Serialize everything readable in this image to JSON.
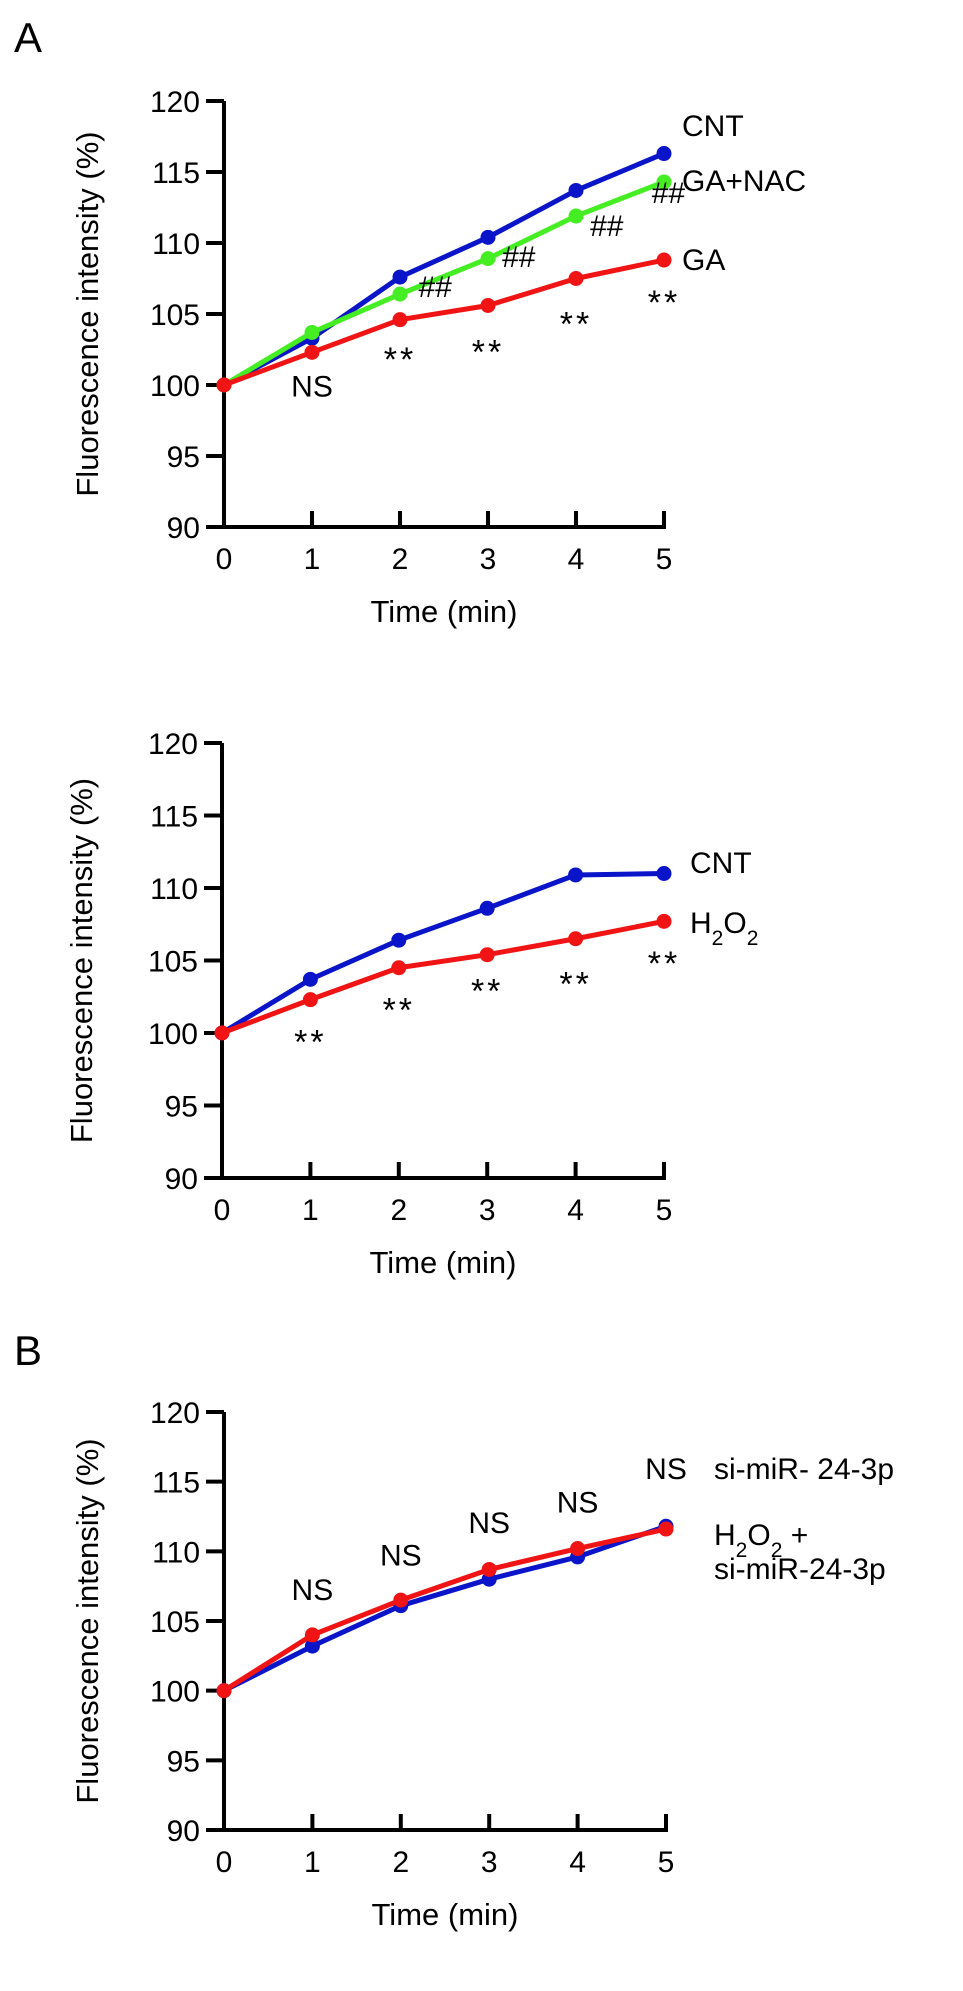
{
  "panel_labels": [
    "A",
    "B"
  ],
  "chart_data": [
    {
      "type": "line",
      "xlabel": "Time (min)",
      "ylabel": "Fluorescence intensity (%)",
      "x": [
        0,
        1,
        2,
        3,
        4,
        5
      ],
      "xlim": [
        0,
        5
      ],
      "ylim": [
        90,
        120
      ],
      "yticks": [
        90,
        95,
        100,
        105,
        110,
        115,
        120
      ],
      "grid": false,
      "series": [
        {
          "name": "CNT",
          "color": "#0a14c8",
          "values": [
            100,
            103.3,
            107.6,
            110.4,
            113.7,
            116.3
          ]
        },
        {
          "name": "GA+NAC",
          "color": "#44ee22",
          "values": [
            100,
            103.7,
            106.4,
            108.9,
            111.9,
            114.3
          ]
        },
        {
          "name": "GA",
          "color": "#f01414",
          "values": [
            100,
            102.3,
            104.6,
            105.6,
            107.5,
            108.8
          ]
        }
      ],
      "annotations": [
        {
          "text": "NS",
          "x": 1,
          "y": 99.2
        },
        {
          "text": "**",
          "x": 2,
          "y": 101.0
        },
        {
          "text": "**",
          "x": 3,
          "y": 101.5
        },
        {
          "text": "**",
          "x": 4,
          "y": 103.5
        },
        {
          "text": "**",
          "x": 5,
          "y": 105.0
        },
        {
          "text": "##",
          "x": 2.4,
          "y": 106.2
        },
        {
          "text": "##",
          "x": 3.35,
          "y": 108.3
        },
        {
          "text": "##",
          "x": 4.35,
          "y": 110.5
        },
        {
          "text": "##",
          "x": 5.05,
          "y": 112.8
        }
      ]
    },
    {
      "type": "line",
      "xlabel": "Time (min)",
      "ylabel": "Fluorescence intensity (%)",
      "x": [
        0,
        1,
        2,
        3,
        4,
        5
      ],
      "xlim": [
        0,
        5
      ],
      "ylim": [
        90,
        120
      ],
      "yticks": [
        90,
        95,
        100,
        105,
        110,
        115,
        120
      ],
      "grid": false,
      "series": [
        {
          "name": "CNT",
          "color": "#0a14c8",
          "values": [
            100,
            103.7,
            106.4,
            108.6,
            110.9,
            111.0
          ]
        },
        {
          "name": "H₂O₂",
          "color": "#f01414",
          "values": [
            100,
            102.3,
            104.5,
            105.4,
            106.5,
            107.7
          ]
        }
      ],
      "annotations": [
        {
          "text": "**",
          "x": 1,
          "y": 98.6
        },
        {
          "text": "**",
          "x": 2,
          "y": 100.8
        },
        {
          "text": "**",
          "x": 3,
          "y": 102.1
        },
        {
          "text": "**",
          "x": 4,
          "y": 102.6
        },
        {
          "text": "**",
          "x": 5,
          "y": 104.0
        }
      ]
    },
    {
      "type": "line",
      "xlabel": "Time (min)",
      "ylabel": "Fluorescence intensity (%)",
      "x": [
        0,
        1,
        2,
        3,
        4,
        5
      ],
      "xlim": [
        0,
        5
      ],
      "ylim": [
        90,
        120
      ],
      "yticks": [
        90,
        95,
        100,
        105,
        110,
        115,
        120
      ],
      "grid": false,
      "series": [
        {
          "name": "si-miR- 24-3p",
          "color": "#0a14c8",
          "values": [
            100,
            103.2,
            106.1,
            108.0,
            109.6,
            111.8
          ]
        },
        {
          "name": "H₂O₂ +\nsi-miR-24-3p",
          "color": "#f01414",
          "values": [
            100,
            104.0,
            106.5,
            108.7,
            110.2,
            111.6
          ]
        }
      ],
      "annotations": [
        {
          "text": "NS",
          "x": 1,
          "y": 106.5
        },
        {
          "text": "NS",
          "x": 2,
          "y": 109.0
        },
        {
          "text": "NS",
          "x": 3,
          "y": 111.3
        },
        {
          "text": "NS",
          "x": 4,
          "y": 112.8
        },
        {
          "text": "NS",
          "x": 5,
          "y": 115.2
        }
      ]
    }
  ]
}
